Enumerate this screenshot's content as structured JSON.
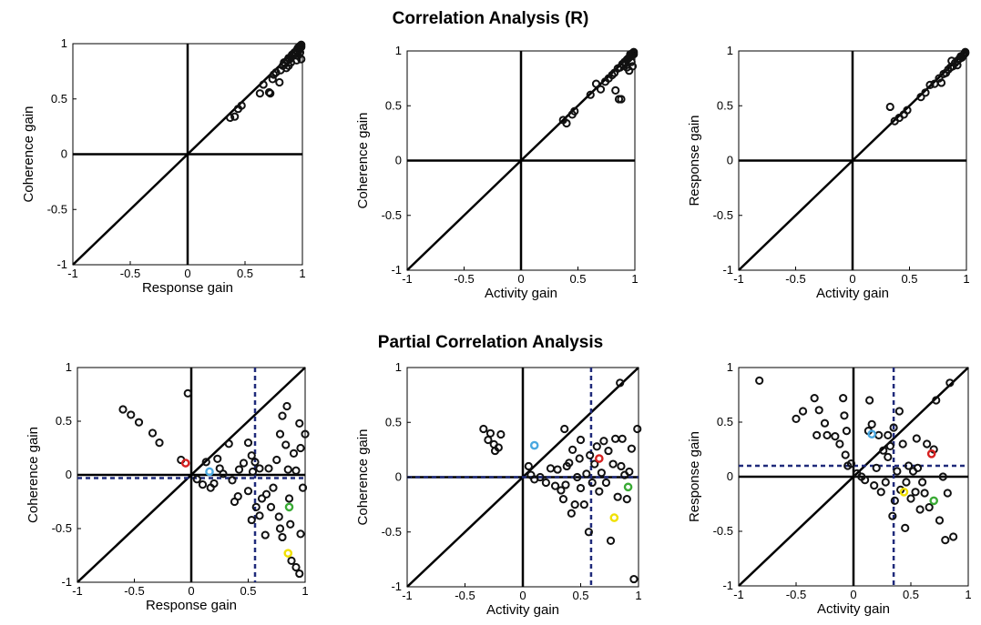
{
  "row_titles": {
    "top": "Correlation Analysis (R)",
    "bottom": "Partial Correlation Analysis"
  },
  "colors": {
    "points": "#111111",
    "crosshair": "#1f2a7a",
    "red": "#d62020",
    "blue": "#4aa8e0",
    "green": "#3aaa35",
    "yellow": "#f0e000"
  },
  "chart_data": [
    {
      "type": "scatter",
      "panel": "top-left",
      "xlabel": "Response gain",
      "ylabel": "Coherence gain",
      "xlim": [
        -1,
        1
      ],
      "ylim": [
        -1,
        1
      ],
      "xticks": [
        "-1",
        "-0.5",
        "0",
        "0.5",
        "1"
      ],
      "yticks": [
        "-1",
        "-0.5",
        "0",
        "0.5",
        "1"
      ],
      "points": [
        [
          0.37,
          0.33
        ],
        [
          0.41,
          0.34
        ],
        [
          0.44,
          0.41
        ],
        [
          0.47,
          0.44
        ],
        [
          0.63,
          0.55
        ],
        [
          0.66,
          0.63
        ],
        [
          0.71,
          0.56
        ],
        [
          0.72,
          0.55
        ],
        [
          0.74,
          0.68
        ],
        [
          0.75,
          0.72
        ],
        [
          0.77,
          0.74
        ],
        [
          0.8,
          0.65
        ],
        [
          0.81,
          0.76
        ],
        [
          0.83,
          0.8
        ],
        [
          0.84,
          0.83
        ],
        [
          0.85,
          0.82
        ],
        [
          0.86,
          0.78
        ],
        [
          0.87,
          0.85
        ],
        [
          0.88,
          0.8
        ],
        [
          0.88,
          0.87
        ],
        [
          0.89,
          0.86
        ],
        [
          0.9,
          0.88
        ],
        [
          0.91,
          0.9
        ],
        [
          0.92,
          0.89
        ],
        [
          0.93,
          0.92
        ],
        [
          0.94,
          0.91
        ],
        [
          0.95,
          0.94
        ],
        [
          0.96,
          0.93
        ],
        [
          0.96,
          0.96
        ],
        [
          0.97,
          0.95
        ],
        [
          0.97,
          0.97
        ],
        [
          0.98,
          0.98
        ],
        [
          0.99,
          0.97
        ],
        [
          0.99,
          0.99
        ],
        [
          0.98,
          0.92
        ],
        [
          0.96,
          0.89
        ],
        [
          0.99,
          0.86
        ],
        [
          0.95,
          0.85
        ],
        [
          0.9,
          0.83
        ]
      ]
    },
    {
      "type": "scatter",
      "panel": "top-middle",
      "xlabel": "Activity gain",
      "ylabel": "Coherence gain",
      "xlim": [
        -1,
        1
      ],
      "ylim": [
        -1,
        1
      ],
      "xticks": [
        "-1",
        "-0.5",
        "0",
        "0.5",
        "1"
      ],
      "yticks": [
        "-1",
        "-0.5",
        "0",
        "0.5",
        "1"
      ],
      "points": [
        [
          0.37,
          0.37
        ],
        [
          0.4,
          0.34
        ],
        [
          0.45,
          0.42
        ],
        [
          0.47,
          0.45
        ],
        [
          0.61,
          0.6
        ],
        [
          0.66,
          0.7
        ],
        [
          0.7,
          0.65
        ],
        [
          0.74,
          0.72
        ],
        [
          0.77,
          0.75
        ],
        [
          0.8,
          0.78
        ],
        [
          0.82,
          0.8
        ],
        [
          0.83,
          0.64
        ],
        [
          0.85,
          0.84
        ],
        [
          0.86,
          0.56
        ],
        [
          0.87,
          0.85
        ],
        [
          0.88,
          0.56
        ],
        [
          0.89,
          0.88
        ],
        [
          0.9,
          0.87
        ],
        [
          0.91,
          0.9
        ],
        [
          0.92,
          0.89
        ],
        [
          0.93,
          0.92
        ],
        [
          0.94,
          0.93
        ],
        [
          0.95,
          0.94
        ],
        [
          0.96,
          0.95
        ],
        [
          0.96,
          0.97
        ],
        [
          0.97,
          0.96
        ],
        [
          0.98,
          0.98
        ],
        [
          0.99,
          0.97
        ],
        [
          0.99,
          0.99
        ],
        [
          0.97,
          0.9
        ],
        [
          0.93,
          0.85
        ],
        [
          0.95,
          0.82
        ],
        [
          0.98,
          0.86
        ]
      ]
    },
    {
      "type": "scatter",
      "panel": "top-right",
      "xlabel": "Activity gain",
      "ylabel": "Response gain",
      "xlim": [
        -1,
        1
      ],
      "ylim": [
        -1,
        1
      ],
      "xticks": [
        "-1",
        "-0.5",
        "0",
        "0.5",
        "1"
      ],
      "yticks": [
        "-1",
        "-0.5",
        "0",
        "0.5",
        "1"
      ],
      "points": [
        [
          0.33,
          0.49
        ],
        [
          0.37,
          0.36
        ],
        [
          0.41,
          0.39
        ],
        [
          0.45,
          0.42
        ],
        [
          0.48,
          0.46
        ],
        [
          0.6,
          0.58
        ],
        [
          0.64,
          0.62
        ],
        [
          0.68,
          0.69
        ],
        [
          0.72,
          0.7
        ],
        [
          0.76,
          0.75
        ],
        [
          0.78,
          0.71
        ],
        [
          0.8,
          0.79
        ],
        [
          0.82,
          0.8
        ],
        [
          0.84,
          0.83
        ],
        [
          0.86,
          0.85
        ],
        [
          0.88,
          0.86
        ],
        [
          0.9,
          0.89
        ],
        [
          0.92,
          0.91
        ],
        [
          0.94,
          0.93
        ],
        [
          0.95,
          0.95
        ],
        [
          0.96,
          0.94
        ],
        [
          0.97,
          0.96
        ],
        [
          0.98,
          0.97
        ],
        [
          0.99,
          0.98
        ],
        [
          0.99,
          0.99
        ],
        [
          0.92,
          0.87
        ],
        [
          0.87,
          0.91
        ]
      ]
    },
    {
      "type": "scatter",
      "panel": "bottom-left",
      "xlabel": "Response gain",
      "ylabel": "Coherence gain",
      "xlim": [
        -1,
        1
      ],
      "ylim": [
        -1,
        1
      ],
      "xticks": [
        "-1",
        "-0.5",
        "0",
        "0.5",
        "1"
      ],
      "yticks": [
        "-1",
        "-0.5",
        "0",
        "0.5",
        "1"
      ],
      "crosshair": {
        "x": 0.56,
        "y": -0.03
      },
      "points": [
        [
          -0.6,
          0.61
        ],
        [
          -0.53,
          0.56
        ],
        [
          -0.46,
          0.49
        ],
        [
          -0.34,
          0.39
        ],
        [
          -0.28,
          0.3
        ],
        [
          -0.03,
          0.76
        ],
        [
          -0.09,
          0.14
        ],
        [
          0.05,
          -0.04
        ],
        [
          0.1,
          -0.09
        ],
        [
          0.13,
          0.12
        ],
        [
          0.17,
          -0.12
        ],
        [
          0.2,
          -0.08
        ],
        [
          0.23,
          0.15
        ],
        [
          0.25,
          0.06
        ],
        [
          0.28,
          0.01
        ],
        [
          0.33,
          0.29
        ],
        [
          0.36,
          -0.05
        ],
        [
          0.38,
          -0.25
        ],
        [
          0.41,
          -0.2
        ],
        [
          0.42,
          0.05
        ],
        [
          0.46,
          0.11
        ],
        [
          0.5,
          0.3
        ],
        [
          0.5,
          -0.15
        ],
        [
          0.53,
          0.18
        ],
        [
          0.53,
          -0.42
        ],
        [
          0.54,
          0.03
        ],
        [
          0.56,
          0.12
        ],
        [
          0.57,
          -0.3
        ],
        [
          0.6,
          -0.38
        ],
        [
          0.6,
          0.06
        ],
        [
          0.62,
          -0.22
        ],
        [
          0.65,
          -0.56
        ],
        [
          0.66,
          -0.18
        ],
        [
          0.68,
          0.06
        ],
        [
          0.7,
          -0.3
        ],
        [
          0.72,
          -0.12
        ],
        [
          0.75,
          0.14
        ],
        [
          0.77,
          -0.39
        ],
        [
          0.78,
          -0.5
        ],
        [
          0.78,
          0.38
        ],
        [
          0.8,
          -0.58
        ],
        [
          0.8,
          0.55
        ],
        [
          0.83,
          0.28
        ],
        [
          0.84,
          0.64
        ],
        [
          0.85,
          0.05
        ],
        [
          0.86,
          -0.22
        ],
        [
          0.87,
          -0.46
        ],
        [
          0.88,
          -0.8
        ],
        [
          0.9,
          0.2
        ],
        [
          0.92,
          -0.86
        ],
        [
          0.92,
          0.04
        ],
        [
          0.95,
          0.48
        ],
        [
          0.96,
          0.25
        ],
        [
          0.96,
          -0.55
        ],
        [
          0.98,
          -0.12
        ],
        [
          1.0,
          0.38
        ],
        [
          0.95,
          -0.92
        ]
      ],
      "highlights": [
        {
          "color": "red",
          "x": -0.05,
          "y": 0.11
        },
        {
          "color": "blue",
          "x": 0.16,
          "y": 0.03
        },
        {
          "color": "green",
          "x": 0.86,
          "y": -0.3
        },
        {
          "color": "yellow",
          "x": 0.85,
          "y": -0.73
        }
      ]
    },
    {
      "type": "scatter",
      "panel": "bottom-middle",
      "xlabel": "Activity gain",
      "ylabel": "Coherence gain",
      "xlim": [
        -1,
        1
      ],
      "ylim": [
        -1,
        1
      ],
      "xticks": [
        "-1",
        "-0.5",
        "0",
        "0.5",
        "1"
      ],
      "yticks": [
        "-1",
        "-0.5",
        "0",
        "0.5",
        "1"
      ],
      "crosshair": {
        "x": 0.59,
        "y": 0.0
      },
      "points": [
        [
          -0.34,
          0.44
        ],
        [
          -0.28,
          0.4
        ],
        [
          -0.3,
          0.34
        ],
        [
          -0.25,
          0.3
        ],
        [
          -0.21,
          0.27
        ],
        [
          -0.24,
          0.24
        ],
        [
          -0.19,
          0.39
        ],
        [
          0.05,
          0.1
        ],
        [
          0.07,
          0.02
        ],
        [
          0.1,
          -0.02
        ],
        [
          0.15,
          0.0
        ],
        [
          0.2,
          -0.05
        ],
        [
          0.24,
          0.08
        ],
        [
          0.28,
          -0.08
        ],
        [
          0.3,
          0.07
        ],
        [
          0.33,
          -0.12
        ],
        [
          0.35,
          -0.2
        ],
        [
          0.37,
          -0.07
        ],
        [
          0.38,
          0.1
        ],
        [
          0.4,
          0.13
        ],
        [
          0.42,
          -0.33
        ],
        [
          0.43,
          0.25
        ],
        [
          0.45,
          -0.25
        ],
        [
          0.47,
          0.0
        ],
        [
          0.49,
          0.17
        ],
        [
          0.5,
          0.34
        ],
        [
          0.5,
          -0.1
        ],
        [
          0.53,
          -0.25
        ],
        [
          0.55,
          0.03
        ],
        [
          0.57,
          -0.5
        ],
        [
          0.58,
          0.2
        ],
        [
          0.6,
          -0.05
        ],
        [
          0.62,
          0.12
        ],
        [
          0.64,
          0.28
        ],
        [
          0.66,
          -0.13
        ],
        [
          0.68,
          0.04
        ],
        [
          0.7,
          0.33
        ],
        [
          0.72,
          -0.05
        ],
        [
          0.74,
          0.24
        ],
        [
          0.76,
          -0.58
        ],
        [
          0.78,
          0.12
        ],
        [
          0.8,
          0.35
        ],
        [
          0.82,
          -0.18
        ],
        [
          0.84,
          0.86
        ],
        [
          0.85,
          0.1
        ],
        [
          0.86,
          0.35
        ],
        [
          0.88,
          0.02
        ],
        [
          0.9,
          -0.2
        ],
        [
          0.92,
          0.05
        ],
        [
          0.94,
          0.26
        ],
        [
          0.96,
          -0.93
        ],
        [
          0.99,
          0.44
        ],
        [
          0.36,
          0.44
        ]
      ],
      "highlights": [
        {
          "color": "blue",
          "x": 0.1,
          "y": 0.29
        },
        {
          "color": "red",
          "x": 0.66,
          "y": 0.17
        },
        {
          "color": "green",
          "x": 0.91,
          "y": -0.09
        },
        {
          "color": "yellow",
          "x": 0.79,
          "y": -0.37
        }
      ]
    },
    {
      "type": "scatter",
      "panel": "bottom-right",
      "xlabel": "Activity gain",
      "ylabel": "Response gain",
      "xlim": [
        -1,
        1
      ],
      "ylim": [
        -1,
        1
      ],
      "xticks": [
        "-1",
        "-0.5",
        "0",
        "0.5",
        "1"
      ],
      "yticks": [
        "-1",
        "-0.5",
        "0",
        "0.5",
        "1"
      ],
      "crosshair": {
        "x": 0.35,
        "y": 0.1
      },
      "points": [
        [
          -0.82,
          0.88
        ],
        [
          -0.5,
          0.53
        ],
        [
          -0.44,
          0.6
        ],
        [
          -0.34,
          0.72
        ],
        [
          -0.3,
          0.61
        ],
        [
          -0.25,
          0.49
        ],
        [
          -0.32,
          0.38
        ],
        [
          -0.23,
          0.38
        ],
        [
          -0.16,
          0.37
        ],
        [
          -0.12,
          0.3
        ],
        [
          -0.09,
          0.72
        ],
        [
          -0.08,
          0.56
        ],
        [
          -0.06,
          0.42
        ],
        [
          -0.05,
          0.1
        ],
        [
          -0.07,
          0.2
        ],
        [
          -0.02,
          0.12
        ],
        [
          0.03,
          0.03
        ],
        [
          0.07,
          0.0
        ],
        [
          0.1,
          -0.03
        ],
        [
          0.13,
          0.42
        ],
        [
          0.14,
          0.7
        ],
        [
          0.16,
          0.48
        ],
        [
          0.18,
          -0.08
        ],
        [
          0.2,
          0.08
        ],
        [
          0.22,
          0.38
        ],
        [
          0.24,
          -0.14
        ],
        [
          0.26,
          0.24
        ],
        [
          0.28,
          -0.05
        ],
        [
          0.3,
          0.38
        ],
        [
          0.32,
          0.28
        ],
        [
          0.34,
          -0.36
        ],
        [
          0.35,
          0.45
        ],
        [
          0.36,
          -0.22
        ],
        [
          0.38,
          0.05
        ],
        [
          0.4,
          0.6
        ],
        [
          0.41,
          -0.12
        ],
        [
          0.43,
          0.3
        ],
        [
          0.45,
          -0.47
        ],
        [
          0.46,
          -0.05
        ],
        [
          0.48,
          0.1
        ],
        [
          0.5,
          -0.2
        ],
        [
          0.52,
          0.05
        ],
        [
          0.54,
          -0.14
        ],
        [
          0.56,
          0.08
        ],
        [
          0.58,
          -0.3
        ],
        [
          0.6,
          -0.05
        ],
        [
          0.62,
          -0.15
        ],
        [
          0.64,
          0.3
        ],
        [
          0.66,
          -0.28
        ],
        [
          0.7,
          0.25
        ],
        [
          0.72,
          0.7
        ],
        [
          0.75,
          -0.4
        ],
        [
          0.78,
          0.0
        ],
        [
          0.8,
          -0.58
        ],
        [
          0.82,
          -0.15
        ],
        [
          0.84,
          0.86
        ],
        [
          0.87,
          -0.55
        ],
        [
          0.3,
          0.18
        ],
        [
          0.55,
          0.35
        ]
      ],
      "highlights": [
        {
          "color": "blue",
          "x": 0.16,
          "y": 0.39
        },
        {
          "color": "red",
          "x": 0.68,
          "y": 0.21
        },
        {
          "color": "green",
          "x": 0.7,
          "y": -0.22
        },
        {
          "color": "yellow",
          "x": 0.44,
          "y": -0.14
        }
      ]
    }
  ]
}
